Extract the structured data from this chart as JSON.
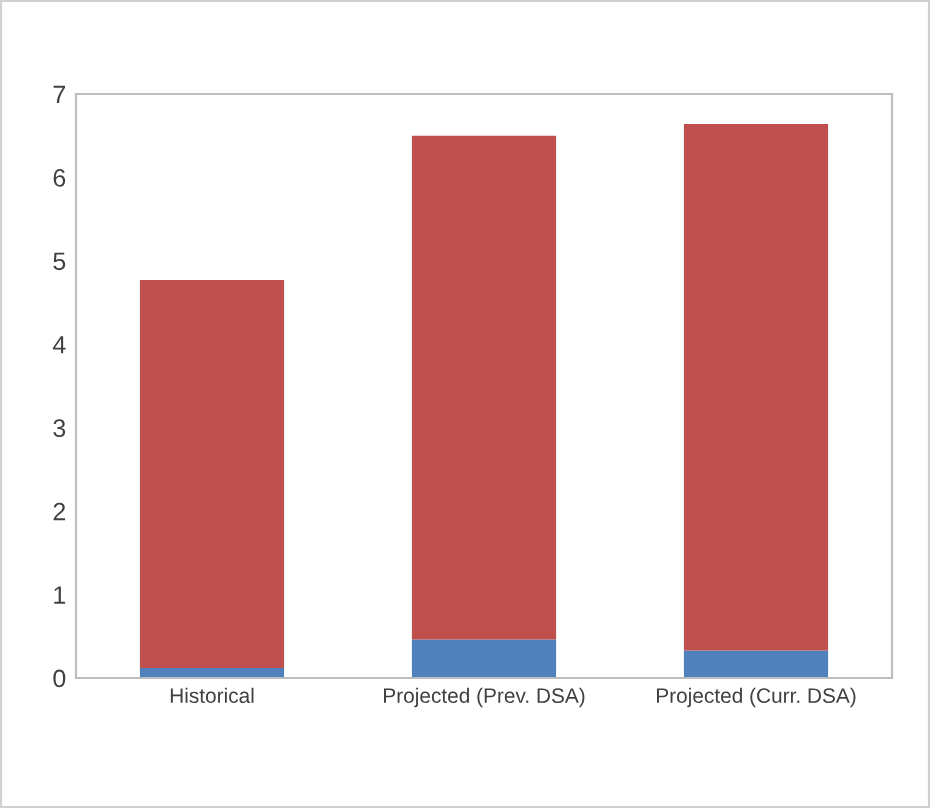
{
  "chart_data": {
    "type": "bar",
    "stacked": true,
    "categories": [
      "Historical",
      "Projected (Prev. DSA)",
      "Projected (Curr. DSA)"
    ],
    "series": [
      {
        "color": "#4f81bd",
        "values": [
          0.12,
          0.46,
          0.33
        ]
      },
      {
        "color": "#c0504d",
        "values": [
          4.65,
          6.04,
          6.31
        ]
      }
    ],
    "ylim": [
      0,
      7
    ],
    "yticks": [
      0,
      1,
      2,
      3,
      4,
      5,
      6,
      7
    ],
    "grid": false,
    "legend": false
  }
}
